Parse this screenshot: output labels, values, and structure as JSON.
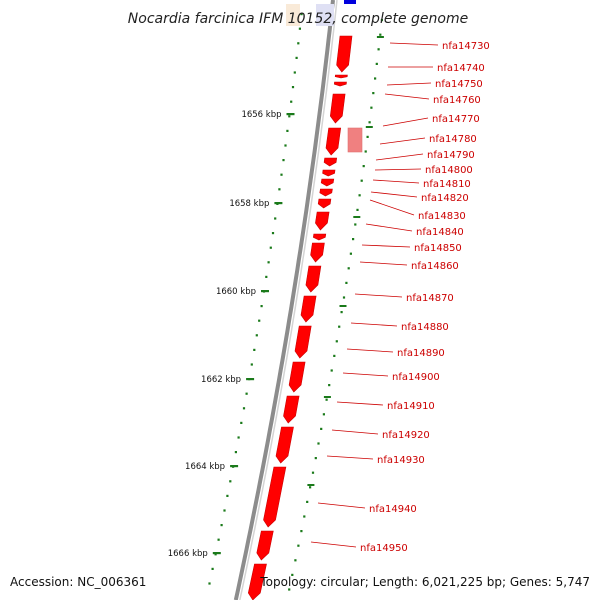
{
  "title": "Nocardia farcinica IFM 10152, complete genome",
  "footer": {
    "accession": "Accession: NC_006361",
    "summary": "Topology: circular; Length: 6,021,225 bp; Genes: 5,747"
  },
  "colors": {
    "gene": "#ff0000",
    "gene_light": "#f08080",
    "backbone": "#8c8c8c",
    "tick": "#1a7a1a",
    "label": "#cc0000",
    "blue_gene": "#0000dd"
  },
  "kbp_ticks": [
    "1656 kbp",
    "1658 kbp",
    "1660 kbp",
    "1662 kbp",
    "1664 kbp",
    "1666 kbp"
  ],
  "genes": [
    "nfa14730",
    "nfa14740",
    "nfa14750",
    "nfa14760",
    "nfa14770",
    "nfa14780",
    "nfa14790",
    "nfa14800",
    "nfa14810",
    "nfa14820",
    "nfa14830",
    "nfa14840",
    "nfa14850",
    "nfa14860",
    "nfa14870",
    "nfa14880",
    "nfa14890",
    "nfa14900",
    "nfa14910",
    "nfa14920",
    "nfa14930",
    "nfa14940",
    "nfa14950"
  ]
}
